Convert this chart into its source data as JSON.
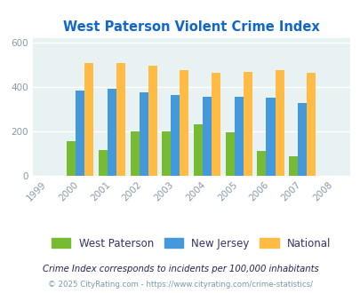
{
  "title": "West Paterson Violent Crime Index",
  "years": [
    1999,
    2000,
    2001,
    2002,
    2003,
    2004,
    2005,
    2006,
    2007,
    2008
  ],
  "data_years": [
    2000,
    2001,
    2002,
    2003,
    2004,
    2005,
    2006,
    2007
  ],
  "west_paterson": [
    155,
    115,
    200,
    200,
    230,
    197,
    113,
    87
  ],
  "new_jersey": [
    383,
    393,
    377,
    362,
    355,
    355,
    351,
    327
  ],
  "national": [
    507,
    506,
    494,
    475,
    463,
    469,
    474,
    462
  ],
  "colors": {
    "west_paterson": "#77bb33",
    "new_jersey": "#4499dd",
    "national": "#ffbb44"
  },
  "bg_color": "#e8f2f2",
  "ylim": [
    0,
    620
  ],
  "yticks": [
    0,
    200,
    400,
    600
  ],
  "legend_labels": [
    "West Paterson",
    "New Jersey",
    "National"
  ],
  "footnote1": "Crime Index corresponds to incidents per 100,000 inhabitants",
  "footnote2": "© 2025 CityRating.com - https://www.cityrating.com/crime-statistics/",
  "title_color": "#1166cc",
  "footnote1_color": "#222255",
  "footnote2_color": "#7799aa"
}
